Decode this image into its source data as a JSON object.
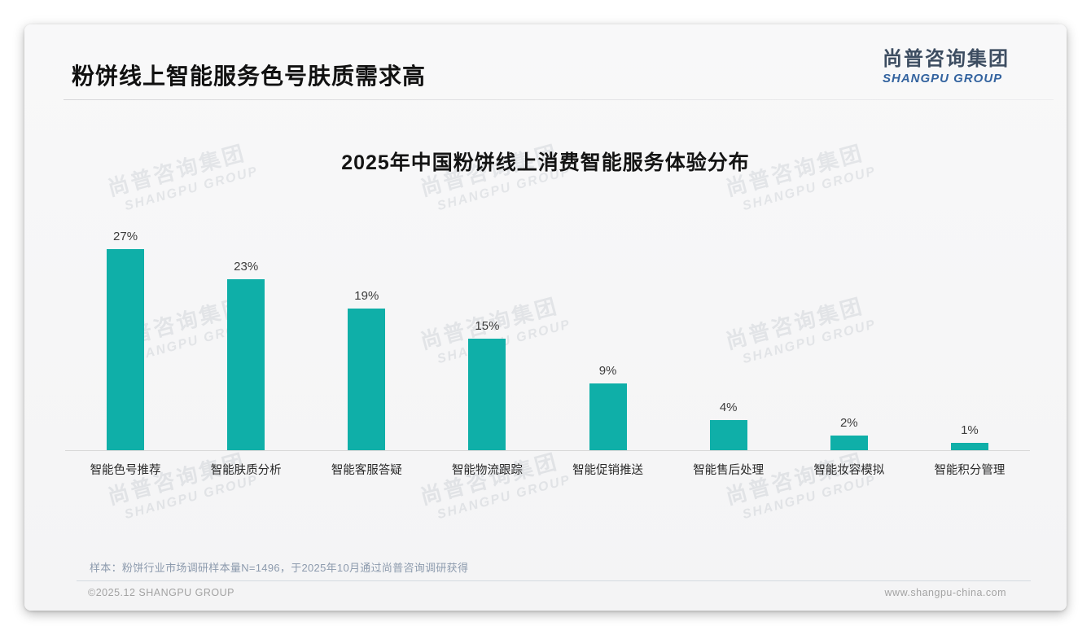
{
  "page": {
    "header": {
      "title": "粉饼线上智能服务色号肤质需求高"
    },
    "logo": {
      "cn": "尚普咨询集团",
      "en": "SHANGPU GROUP"
    },
    "watermark": {
      "cn": "尚普咨询集团",
      "en": "SHANGPU GROUP"
    },
    "footnote": "样本：粉饼行业市场调研样本量N=1496，于2025年10月通过尚普咨询调研获得",
    "footer": {
      "left": "©2025.12 SHANGPU GROUP",
      "right": "www.shangpu-china.com"
    }
  },
  "chart_data": {
    "type": "bar",
    "title": "2025年中国粉饼线上消费智能服务体验分布",
    "categories": [
      "智能色号推荐",
      "智能肤质分析",
      "智能客服答疑",
      "智能物流跟踪",
      "智能促销推送",
      "智能售后处理",
      "智能妆容模拟",
      "智能积分管理"
    ],
    "values": [
      27,
      23,
      19,
      15,
      9,
      4,
      2,
      1
    ],
    "data_labels": [
      "27%",
      "23%",
      "19%",
      "15%",
      "9%",
      "4%",
      "2%",
      "1%"
    ],
    "unit": "%",
    "xlabel": "",
    "ylabel": "",
    "ylim": [
      0,
      30
    ],
    "grid": false,
    "legend": "none",
    "value_axis_visible": false,
    "bar_color": "#0fafa8"
  }
}
